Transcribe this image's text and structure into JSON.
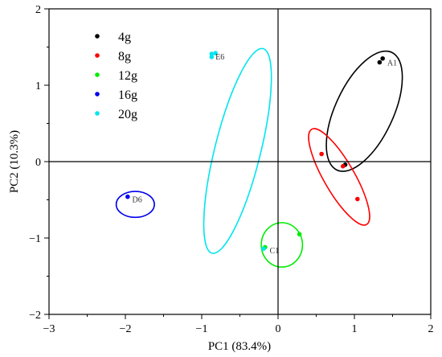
{
  "chart_data": {
    "type": "scatter",
    "xlabel": "PC1 (83.4%)",
    "ylabel": "PC2 (10.3%)",
    "xlim": [
      -3,
      2
    ],
    "ylim": [
      -2,
      2
    ],
    "xticks": [
      -3,
      -2,
      -1,
      0,
      1,
      2
    ],
    "yticks": [
      -2,
      -1,
      0,
      1,
      2
    ],
    "x_tick_labels": [
      "−3",
      "−2",
      "−1",
      "0",
      "1",
      "2"
    ],
    "y_tick_labels": [
      "−2",
      "−1",
      "0",
      "1",
      "2"
    ],
    "grid": false,
    "zero_lines": true,
    "legend_position": "top-left",
    "series": [
      {
        "name": "4g",
        "color": "#000000",
        "points": [
          [
            1.37,
            1.35
          ],
          [
            1.33,
            1.3
          ],
          [
            0.88,
            -0.04
          ]
        ],
        "ellipse": {
          "cx": 1.13,
          "cy": 0.66,
          "rx": 0.38,
          "ry": 0.85,
          "angle_deg": 25
        },
        "label": {
          "text": "A1",
          "x": 1.43,
          "y": 1.3
        }
      },
      {
        "name": "8g",
        "color": "#ff0000",
        "points": [
          [
            0.57,
            0.1
          ],
          [
            0.85,
            -0.06
          ],
          [
            1.04,
            -0.49
          ]
        ],
        "ellipse": {
          "cx": 0.8,
          "cy": -0.2,
          "rx": 0.2,
          "ry": 0.72,
          "angle_deg": -30
        },
        "label": null
      },
      {
        "name": "12g",
        "color": "#00ee00",
        "points": [
          [
            0.28,
            -0.95
          ],
          [
            -0.17,
            -1.12
          ]
        ],
        "ellipse": {
          "cx": 0.05,
          "cy": -1.09,
          "rx": 0.27,
          "ry": 0.29,
          "angle_deg": 0
        },
        "label": {
          "text": "C1",
          "x": -0.11,
          "y": -1.16
        }
      },
      {
        "name": "16g",
        "color": "#0000ee",
        "points": [
          [
            -1.97,
            -0.46
          ]
        ],
        "ellipse": {
          "cx": -1.87,
          "cy": -0.56,
          "rx": 0.25,
          "ry": 0.17,
          "angle_deg": 0
        },
        "label": {
          "text": "D6",
          "x": -1.91,
          "y": -0.49
        }
      },
      {
        "name": "20g",
        "color": "#00e5ee",
        "points": [
          [
            -0.87,
            1.41
          ],
          [
            -0.87,
            1.37
          ],
          [
            -0.82,
            1.42
          ],
          [
            -0.19,
            -1.14
          ]
        ],
        "ellipse": {
          "cx": -0.53,
          "cy": 0.14,
          "rx": 0.3,
          "ry": 1.38,
          "angle_deg": 14
        },
        "label": {
          "text": "E6",
          "x": -0.82,
          "y": 1.38
        }
      }
    ]
  }
}
